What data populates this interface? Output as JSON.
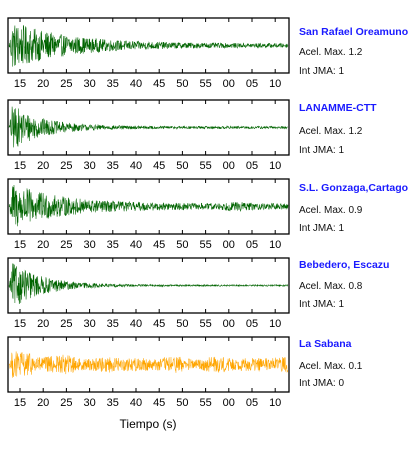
{
  "chart_data": {
    "type": "line",
    "xlabel": "Tiempo (s)",
    "x_tick_labels": [
      "15",
      "20",
      "25",
      "30",
      "35",
      "40",
      "45",
      "50",
      "55",
      "00",
      "05",
      "10"
    ],
    "panels": [
      {
        "station": "San Rafael Oreamuno",
        "acel_label": "Acel. Max. 1.2",
        "jma_label": "Int JMA: 1",
        "color": "#006400",
        "peak_time_s": 14,
        "peak_rel_amplitude": 1.0,
        "decay": "slow",
        "tail_level": 0.08
      },
      {
        "station": "LANAMME-CTT",
        "acel_label": "Acel. Max. 1.2",
        "jma_label": "Int JMA: 1",
        "color": "#006400",
        "peak_time_s": 14,
        "peak_rel_amplitude": 1.0,
        "decay": "fast",
        "tail_level": 0.05
      },
      {
        "station": "S.L. Gonzaga,Cartago",
        "acel_label": "Acel. Max. 0.9",
        "jma_label": "Int JMA: 1",
        "color": "#006400",
        "peak_time_s": 14,
        "peak_rel_amplitude": 1.0,
        "decay": "moderate",
        "tail_level": 0.12
      },
      {
        "station": "Bebedero, Escazu",
        "acel_label": "Acel. Max. 0.8",
        "jma_label": "Int JMA: 1",
        "color": "#006400",
        "peak_time_s": 14,
        "peak_rel_amplitude": 1.0,
        "decay": "fast",
        "tail_level": 0.03
      },
      {
        "station": "La Sabana",
        "acel_label": "Acel. Max. 0.1",
        "jma_label": "Int JMA: 0",
        "color": "#FFA500",
        "peak_time_s": 14,
        "peak_rel_amplitude": 0.6,
        "decay": "noisy",
        "tail_level": 0.45
      }
    ]
  }
}
